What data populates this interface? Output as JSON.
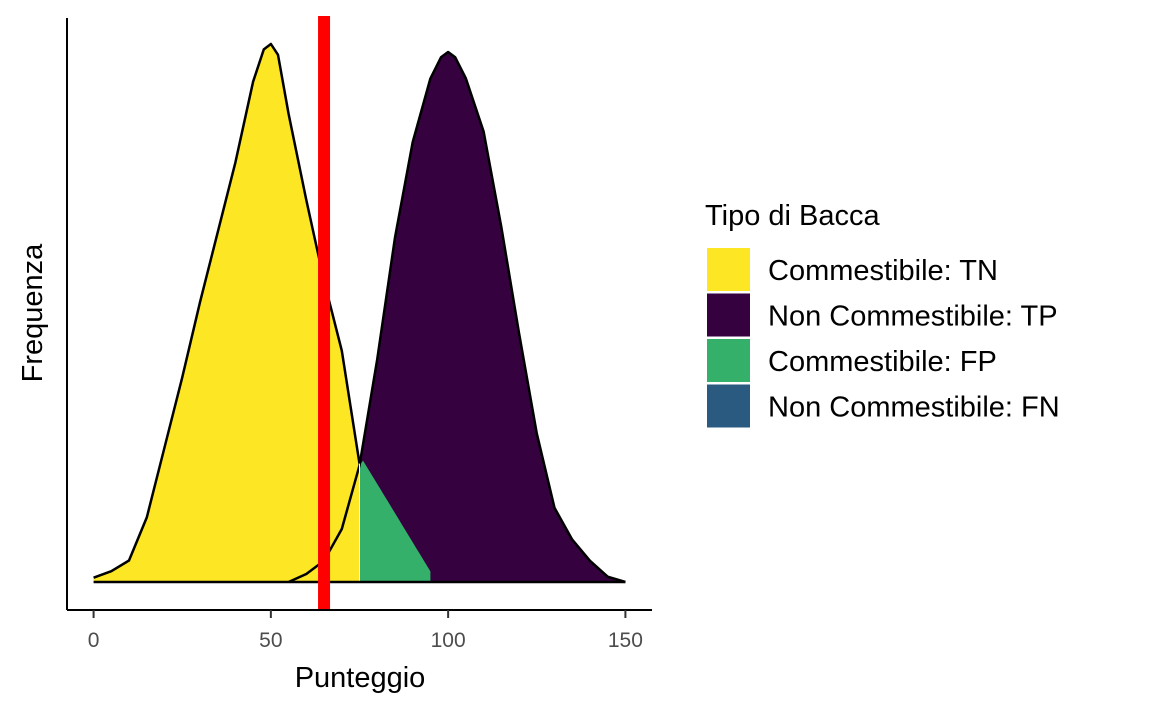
{
  "chart_data": {
    "type": "area",
    "xlabel": "Punteggio",
    "ylabel": "Frequenza",
    "xlim": [
      -7.5,
      157.5
    ],
    "x_ticks": [
      0,
      50,
      100,
      150
    ],
    "y_ticks_visible": false,
    "grid": false,
    "threshold": {
      "x": 65,
      "color": "#ff0000"
    },
    "legend": {
      "title": "Tipo di Bacca",
      "placement": "right",
      "entries": [
        {
          "label": "Commestibile: TN",
          "color": "#fde725"
        },
        {
          "label": "Non Commestibile: TP",
          "color": "#35023f"
        },
        {
          "label": "Commestibile: FP",
          "color": "#35b06a"
        },
        {
          "label": "Non Commestibile: FN",
          "color": "#2a5a7f"
        }
      ]
    },
    "series": [
      {
        "key": "edible",
        "x": [
          0,
          5,
          10,
          15,
          20,
          25,
          30,
          35,
          40,
          45,
          48,
          50,
          52,
          55,
          60,
          65,
          70,
          75
        ],
        "y": [
          0.008,
          0.02,
          0.04,
          0.12,
          0.25,
          0.38,
          0.52,
          0.65,
          0.78,
          0.93,
          0.99,
          1.0,
          0.98,
          0.87,
          0.71,
          0.56,
          0.43,
          0.22
        ]
      },
      {
        "key": "inedible",
        "x": [
          55,
          60,
          65,
          70,
          75,
          80,
          85,
          90,
          95,
          98,
          100,
          102,
          105,
          110,
          115,
          120,
          125,
          130,
          135,
          140,
          145,
          150
        ],
        "y": [
          0.0,
          0.015,
          0.04,
          0.1,
          0.22,
          0.42,
          0.65,
          0.83,
          0.95,
          0.99,
          1.0,
          0.99,
          0.95,
          0.85,
          0.67,
          0.47,
          0.28,
          0.14,
          0.08,
          0.04,
          0.01,
          0.0
        ]
      }
    ]
  }
}
